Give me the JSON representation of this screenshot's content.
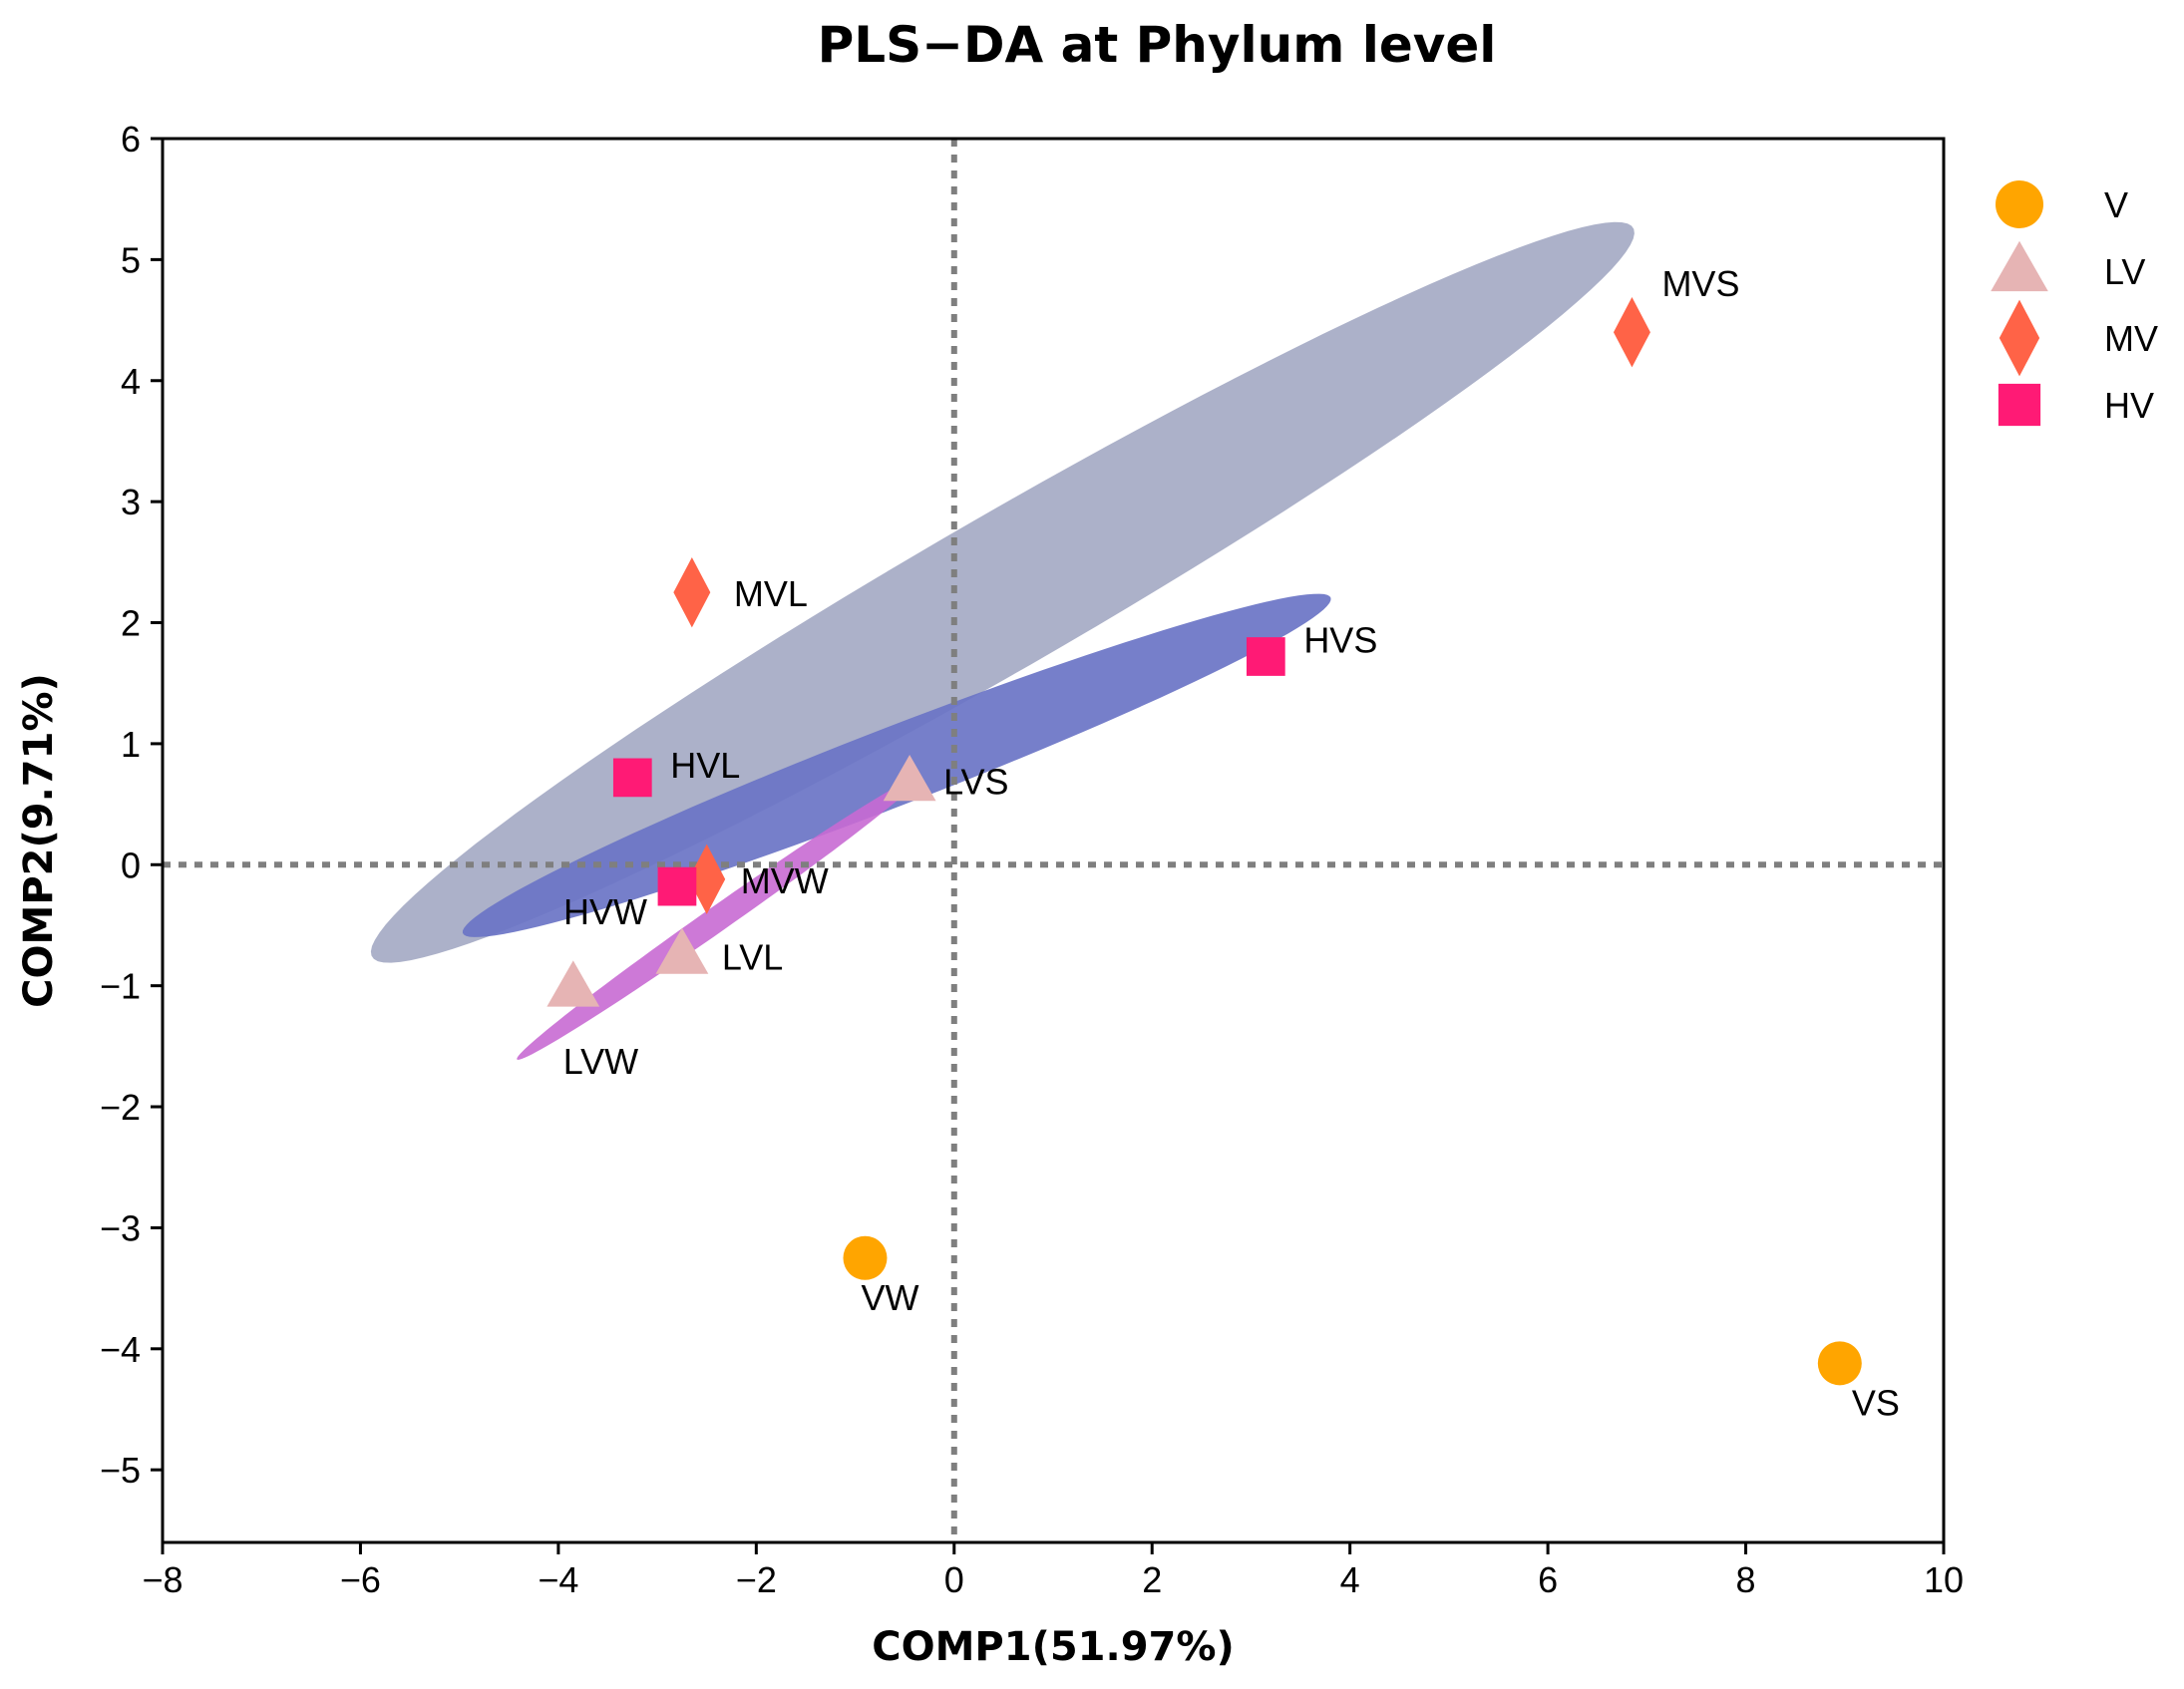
{
  "chart_data": {
    "type": "scatter",
    "title": "PLS−DA at Phylum level",
    "xlabel": "COMP1(51.97%)",
    "ylabel": "COMP2(9.71%)",
    "xlim": [
      -8,
      10
    ],
    "ylim": [
      -5.6,
      6
    ],
    "xticks": [
      -8,
      -6,
      -4,
      -2,
      0,
      2,
      4,
      6,
      8,
      10
    ],
    "xtick_labels": [
      "−8",
      "−6",
      "−4",
      "−2",
      "0",
      "2",
      "4",
      "6",
      "8",
      "10"
    ],
    "yticks": [
      6,
      5,
      4,
      3,
      2,
      1,
      0,
      -1,
      -2,
      -3,
      -4,
      -5
    ],
    "ytick_labels": [
      "6",
      "5",
      "4",
      "3",
      "2",
      "1",
      "0",
      "−1",
      "−2",
      "−3",
      "−4",
      "−5"
    ],
    "reference_lines": {
      "x": 0,
      "y": 0
    },
    "legend_position": "right",
    "series": [
      {
        "name": "V",
        "marker": "circle",
        "color": "#FFA500",
        "points": [
          {
            "label": "VW",
            "x": -0.9,
            "y": -3.25
          },
          {
            "label": "VS",
            "x": 8.95,
            "y": -4.12
          }
        ]
      },
      {
        "name": "LV",
        "marker": "triangle",
        "color": "#E6B4B4",
        "points": [
          {
            "label": "LVS",
            "x": -0.45,
            "y": 0.68
          },
          {
            "label": "LVL",
            "x": -2.75,
            "y": -0.75
          },
          {
            "label": "LVW",
            "x": -3.85,
            "y": -1.02
          }
        ]
      },
      {
        "name": "MV",
        "marker": "diamond",
        "color": "#FF6347",
        "points": [
          {
            "label": "MVS",
            "x": 6.85,
            "y": 4.4
          },
          {
            "label": "MVL",
            "x": -2.65,
            "y": 2.25
          },
          {
            "label": "MVW",
            "x": -2.5,
            "y": -0.12
          }
        ]
      },
      {
        "name": "HV",
        "marker": "square",
        "color": "#FF1A75",
        "points": [
          {
            "label": "HVS",
            "x": 3.15,
            "y": 1.72
          },
          {
            "label": "HVL",
            "x": -3.25,
            "y": 0.72
          },
          {
            "label": "HVW",
            "x": -2.8,
            "y": -0.18
          }
        ]
      }
    ],
    "ellipses": [
      {
        "group": "MV",
        "color": "#A0A6C2",
        "opacity": 0.88,
        "cx": 0.49,
        "cy": 2.25,
        "rx": 7.05,
        "ry": 0.66,
        "angle_deg": 25.2
      },
      {
        "group": "HV",
        "color": "#6A74C6",
        "opacity": 0.92,
        "cx": -0.58,
        "cy": 0.82,
        "rx": 4.6,
        "ry": 0.33,
        "angle_deg": 17.5
      },
      {
        "group": "LV",
        "color": "#C86AD3",
        "opacity": 0.9,
        "cx": -2.38,
        "cy": -0.44,
        "rx": 2.35,
        "ry": 0.11,
        "angle_deg": 29.8
      }
    ]
  }
}
